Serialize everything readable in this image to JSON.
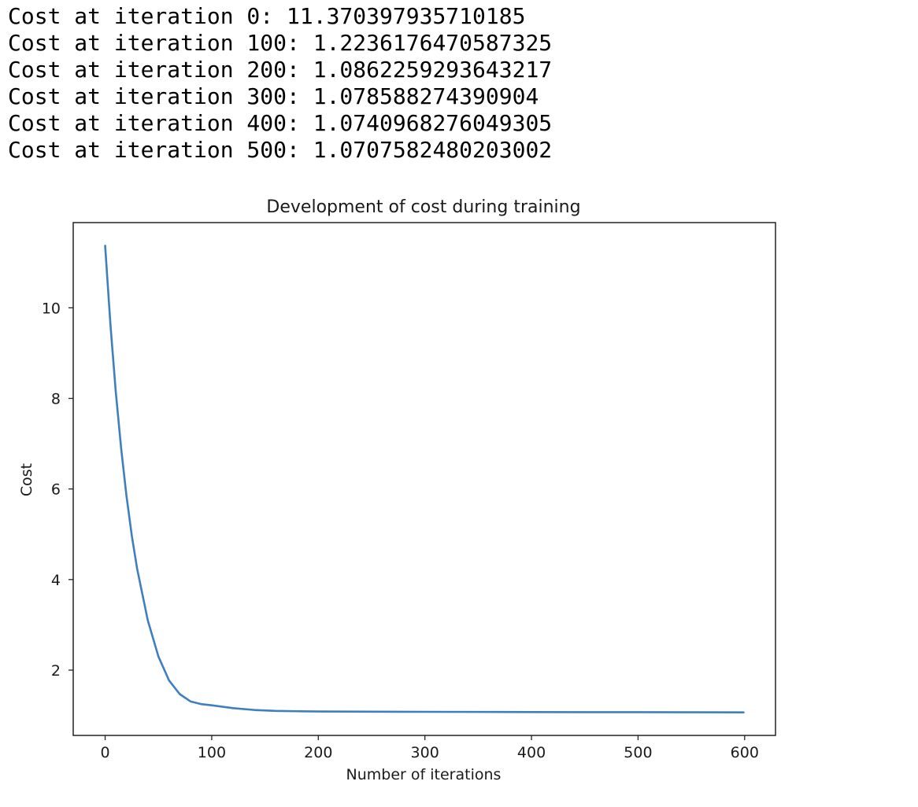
{
  "output_lines": [
    "Cost at iteration 0: 11.370397935710185",
    "Cost at iteration 100: 1.2236176470587325",
    "Cost at iteration 200: 1.0862259293643217",
    "Cost at iteration 300: 1.078588274390904",
    "Cost at iteration 400: 1.0740968276049305",
    "Cost at iteration 500: 1.0707582480203002"
  ],
  "chart_data": {
    "type": "line",
    "title": "Development of cost during training",
    "xlabel": "Number of iterations",
    "ylabel": "Cost",
    "xlim": [
      -29.95,
      628.95
    ],
    "ylim": [
      0.558,
      11.882
    ],
    "xticks": [
      0,
      100,
      200,
      300,
      400,
      500,
      600
    ],
    "yticks": [
      2,
      4,
      6,
      8,
      10
    ],
    "grid": false,
    "line_color": "#3f7fbf",
    "series": [
      {
        "x": [
          0,
          5,
          10,
          15,
          20,
          25,
          30,
          40,
          50,
          60,
          70,
          80,
          90,
          100,
          120,
          140,
          160,
          180,
          200,
          250,
          300,
          350,
          400,
          450,
          500,
          550,
          599
        ],
        "y": [
          11.37,
          9.62,
          8.14,
          6.9,
          5.85,
          4.97,
          4.24,
          3.1,
          2.3,
          1.77,
          1.47,
          1.31,
          1.25,
          1.224,
          1.16,
          1.12,
          1.1,
          1.092,
          1.086,
          1.082,
          1.079,
          1.077,
          1.074,
          1.072,
          1.071,
          1.069,
          1.068
        ]
      }
    ]
  }
}
